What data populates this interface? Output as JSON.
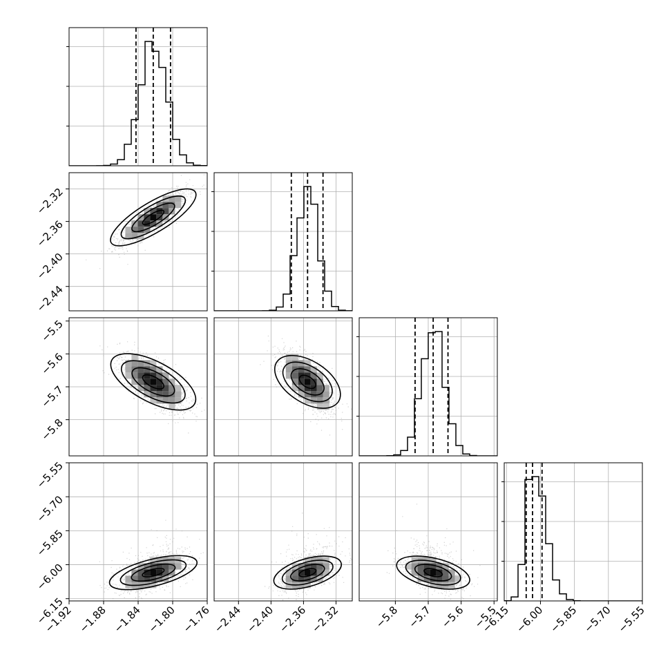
{
  "chart_data": {
    "type": "corner",
    "grid": true,
    "params": [
      {
        "range": [
          -1.92,
          -1.76
        ],
        "ticks": [
          -1.92,
          -1.88,
          -1.84,
          -1.8,
          -1.76
        ],
        "tick_labels": [
          "−1.92",
          "−1.88",
          "−1.84",
          "−1.80",
          "−1.76"
        ],
        "quantiles": [
          -1.8425,
          -1.8225,
          -1.8025
        ],
        "median": -1.8225,
        "sigma": 0.0155
      },
      {
        "range": [
          -2.47,
          -2.3
        ],
        "ticks": [
          -2.44,
          -2.4,
          -2.36,
          -2.32
        ],
        "tick_labels": [
          "−2.44",
          "−2.40",
          "−2.36",
          "−2.32"
        ],
        "quantiles": [
          -2.375,
          -2.355,
          -2.336
        ],
        "median": -2.355,
        "sigma": 0.013
      },
      {
        "range": [
          -5.91,
          -5.49
        ],
        "ticks": [
          -5.8,
          -5.7,
          -5.6,
          -5.5
        ],
        "tick_labels": [
          "−5.8",
          "−5.7",
          "−5.6",
          "−5.5"
        ],
        "quantiles": [
          -5.74,
          -5.685,
          -5.64
        ],
        "median": -5.685,
        "sigma": 0.035
      },
      {
        "range": [
          -6.16,
          -5.55
        ],
        "ticks": [
          -6.15,
          -6.0,
          -5.85,
          -5.7,
          -5.55
        ],
        "tick_labels": [
          "−6.15",
          "−6.00",
          "−5.85",
          "−5.70",
          "−5.55"
        ],
        "quantiles": [
          -6.063,
          -6.035,
          -5.993
        ],
        "median": -6.035,
        "sigma": 0.03
      },
      {
        "ticks": [
          -5.55,
          -5.7,
          -5.85,
          -6.0,
          -6.15
        ],
        "tick_labels": [
          "−5.55",
          "−5.70",
          "−5.85",
          "−6.00",
          "−6.15"
        ]
      }
    ],
    "correlations": {
      "1-0": 0.85,
      "2-0": -0.68,
      "2-1": -0.65,
      "3-0": 0.55,
      "3-1": 0.5,
      "3-2": -0.45
    },
    "contour_levels": [
      0.5,
      1.0,
      1.5,
      2.0
    ]
  }
}
